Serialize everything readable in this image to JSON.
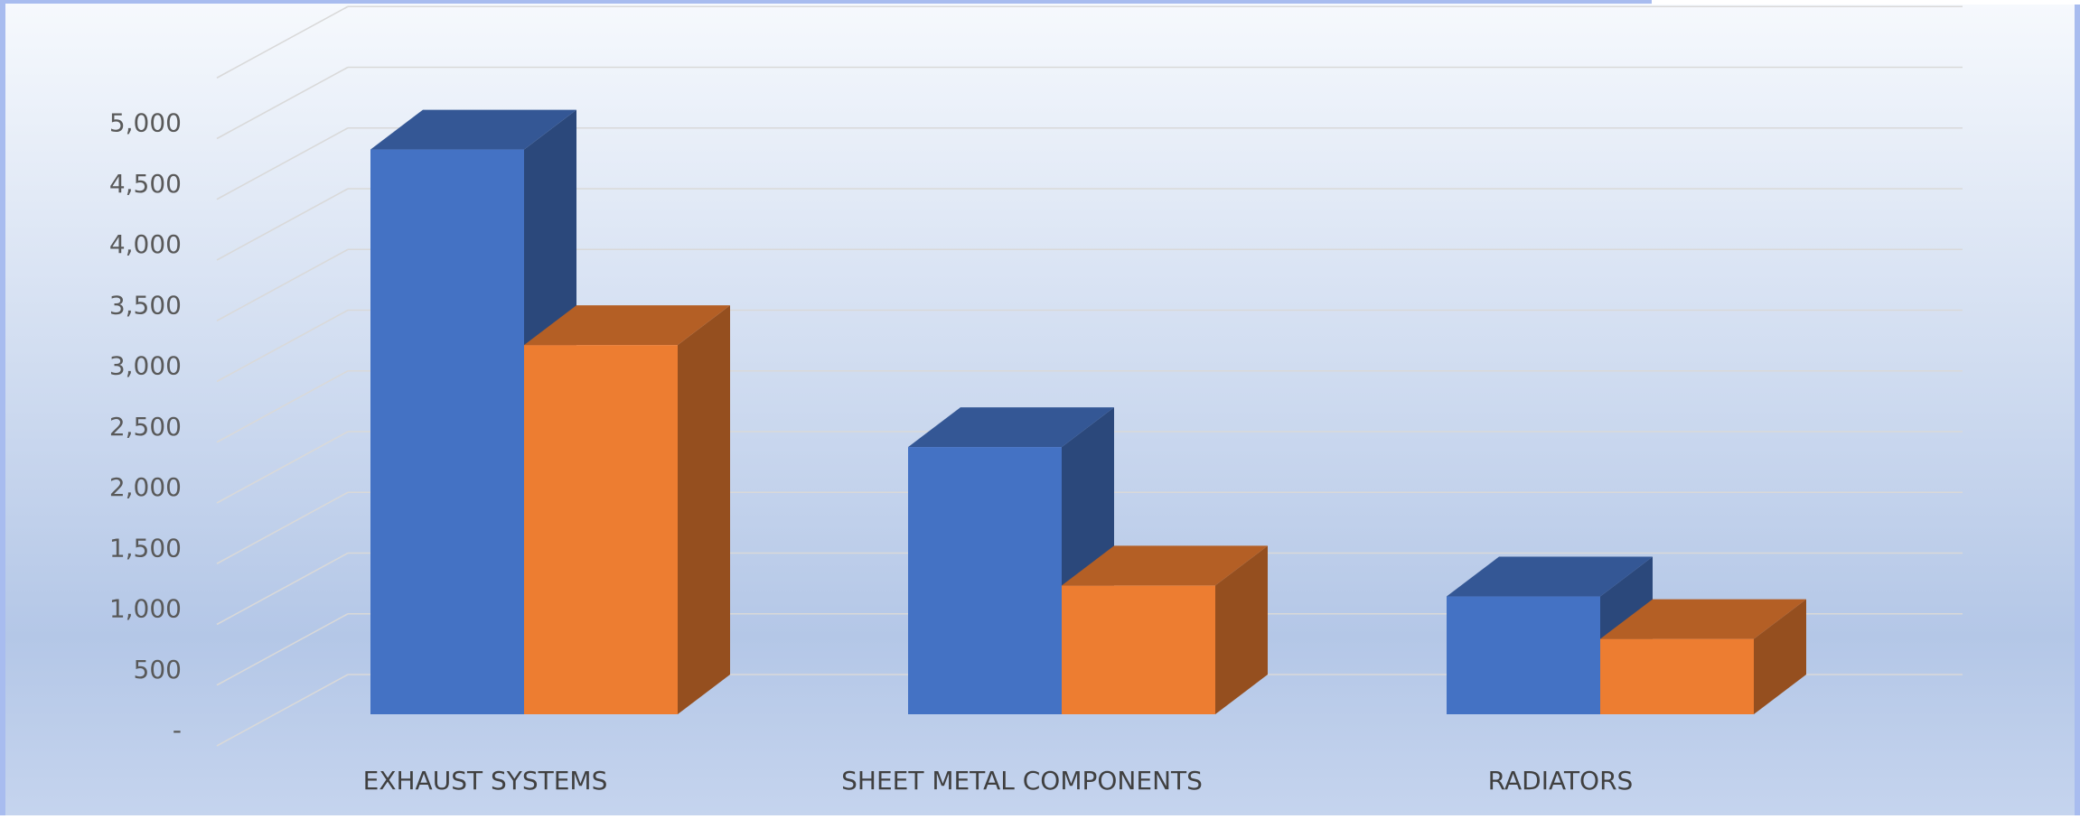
{
  "chart_data": {
    "type": "bar",
    "categories": [
      "EXHAUST SYSTEMS",
      "SHEET METAL COMPONENTS",
      "RADIATORS"
    ],
    "series": [
      {
        "color": "#4472C4",
        "values": [
          4650,
          2200,
          970
        ]
      },
      {
        "color": "#ED7D31",
        "values": [
          3040,
          1060,
          620
        ]
      }
    ],
    "y_ticks": [
      "-",
      "500",
      "1,000",
      "1,500",
      "2,000",
      "2,500",
      "3,000",
      "3,500",
      "4,000",
      "4,500",
      "5,000"
    ],
    "ylim": [
      0,
      5500
    ],
    "grid": true,
    "style": "3d-clustered-column",
    "colors": {
      "background_top": "#F6F9FD",
      "background_bottom": "#B4C7E7",
      "frame": "#A8BCEF",
      "gridline": "#D9D9D9",
      "axis_text": "#595959",
      "category_text": "#404040"
    }
  }
}
